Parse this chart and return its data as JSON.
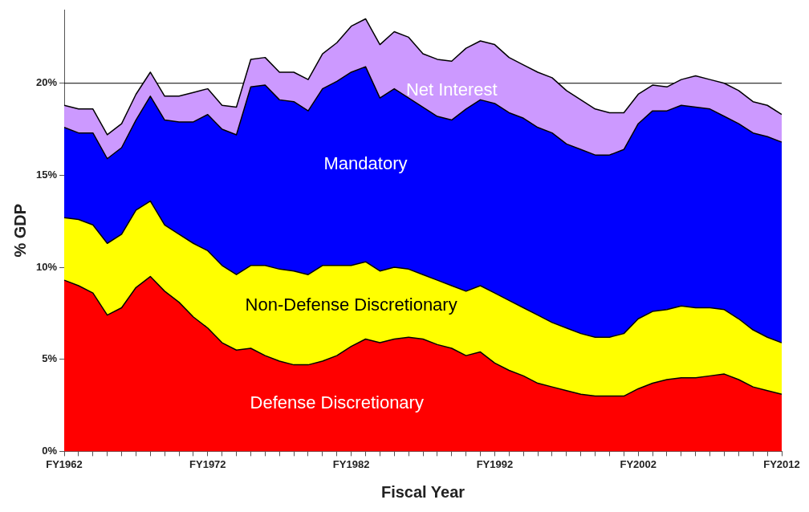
{
  "chart_data": {
    "type": "area",
    "stacked": true,
    "xlabel": "Fiscal Year",
    "ylabel": "% GDP",
    "categories": [
      "FY1962",
      null,
      null,
      null,
      null,
      null,
      null,
      null,
      null,
      null,
      "FY1972",
      null,
      null,
      null,
      null,
      null,
      null,
      null,
      null,
      null,
      "FY1982",
      null,
      null,
      null,
      null,
      null,
      null,
      null,
      null,
      null,
      "FY1992",
      null,
      null,
      null,
      null,
      null,
      null,
      null,
      null,
      null,
      "FY2002",
      null,
      null,
      null,
      null,
      null,
      null,
      null,
      null,
      null,
      "FY2012"
    ],
    "series": [
      {
        "name": "Defense Discretionary",
        "color": "#ff0000",
        "values": [
          9.3,
          9.0,
          8.6,
          7.4,
          7.8,
          8.9,
          9.5,
          8.7,
          8.1,
          7.3,
          6.7,
          5.9,
          5.5,
          5.6,
          5.2,
          4.9,
          4.7,
          4.7,
          4.9,
          5.2,
          5.7,
          6.1,
          5.9,
          6.1,
          6.2,
          6.1,
          5.8,
          5.6,
          5.2,
          5.4,
          4.8,
          4.4,
          4.1,
          3.7,
          3.5,
          3.3,
          3.1,
          3.0,
          3.0,
          3.0,
          3.4,
          3.7,
          3.9,
          4.0,
          4.0,
          4.1,
          4.2,
          3.9,
          3.5,
          3.3,
          3.1
        ]
      },
      {
        "name": "Non-Defense Discretionary",
        "color": "#ffff00",
        "values": [
          3.4,
          3.6,
          3.7,
          3.9,
          4.0,
          4.2,
          4.1,
          3.6,
          3.7,
          4.0,
          4.2,
          4.2,
          4.1,
          4.5,
          4.9,
          5.0,
          5.1,
          4.9,
          5.2,
          4.9,
          4.4,
          4.2,
          3.9,
          3.9,
          3.7,
          3.5,
          3.5,
          3.4,
          3.5,
          3.6,
          3.8,
          3.8,
          3.7,
          3.7,
          3.5,
          3.4,
          3.3,
          3.2,
          3.2,
          3.4,
          3.8,
          3.9,
          3.8,
          3.9,
          3.8,
          3.7,
          3.5,
          3.3,
          3.1,
          2.9,
          2.8
        ]
      },
      {
        "name": "Mandatory",
        "color": "#0000ff",
        "values": [
          4.9,
          4.7,
          5.0,
          4.6,
          4.7,
          4.9,
          5.7,
          5.7,
          6.1,
          6.6,
          7.4,
          7.4,
          7.6,
          9.7,
          9.8,
          9.2,
          9.2,
          8.9,
          9.6,
          10.0,
          10.5,
          10.6,
          9.4,
          9.7,
          9.3,
          9.1,
          8.9,
          9.0,
          9.9,
          10.1,
          10.3,
          10.2,
          10.3,
          10.2,
          10.3,
          10.0,
          10.0,
          9.9,
          9.9,
          10.0,
          10.6,
          10.9,
          10.8,
          10.9,
          10.9,
          10.8,
          10.5,
          10.6,
          10.7,
          10.9,
          10.9
        ]
      },
      {
        "name": "Net Interest",
        "color": "#cc99ff",
        "values": [
          1.2,
          1.3,
          1.3,
          1.3,
          1.3,
          1.4,
          1.3,
          1.3,
          1.4,
          1.6,
          1.4,
          1.3,
          1.5,
          1.5,
          1.5,
          1.5,
          1.6,
          1.7,
          1.9,
          2.1,
          2.5,
          2.6,
          2.9,
          3.1,
          3.3,
          2.9,
          3.1,
          3.2,
          3.3,
          3.2,
          3.2,
          3.0,
          2.9,
          3.0,
          3.0,
          2.9,
          2.7,
          2.5,
          2.3,
          2.0,
          1.6,
          1.4,
          1.3,
          1.4,
          1.7,
          1.6,
          1.8,
          1.8,
          1.7,
          1.7,
          1.5
        ]
      }
    ],
    "ylim": [
      0,
      24
    ],
    "yticks": [
      {
        "value": 0,
        "label": "0%"
      },
      {
        "value": 5,
        "label": "5%"
      },
      {
        "value": 10,
        "label": "10%"
      },
      {
        "value": 15,
        "label": "15%"
      },
      {
        "value": 20,
        "label": "20%"
      }
    ],
    "ref_lines": [
      {
        "axis": "y",
        "value": 20,
        "color": "#000000"
      }
    ],
    "grid": false,
    "legend": false
  }
}
